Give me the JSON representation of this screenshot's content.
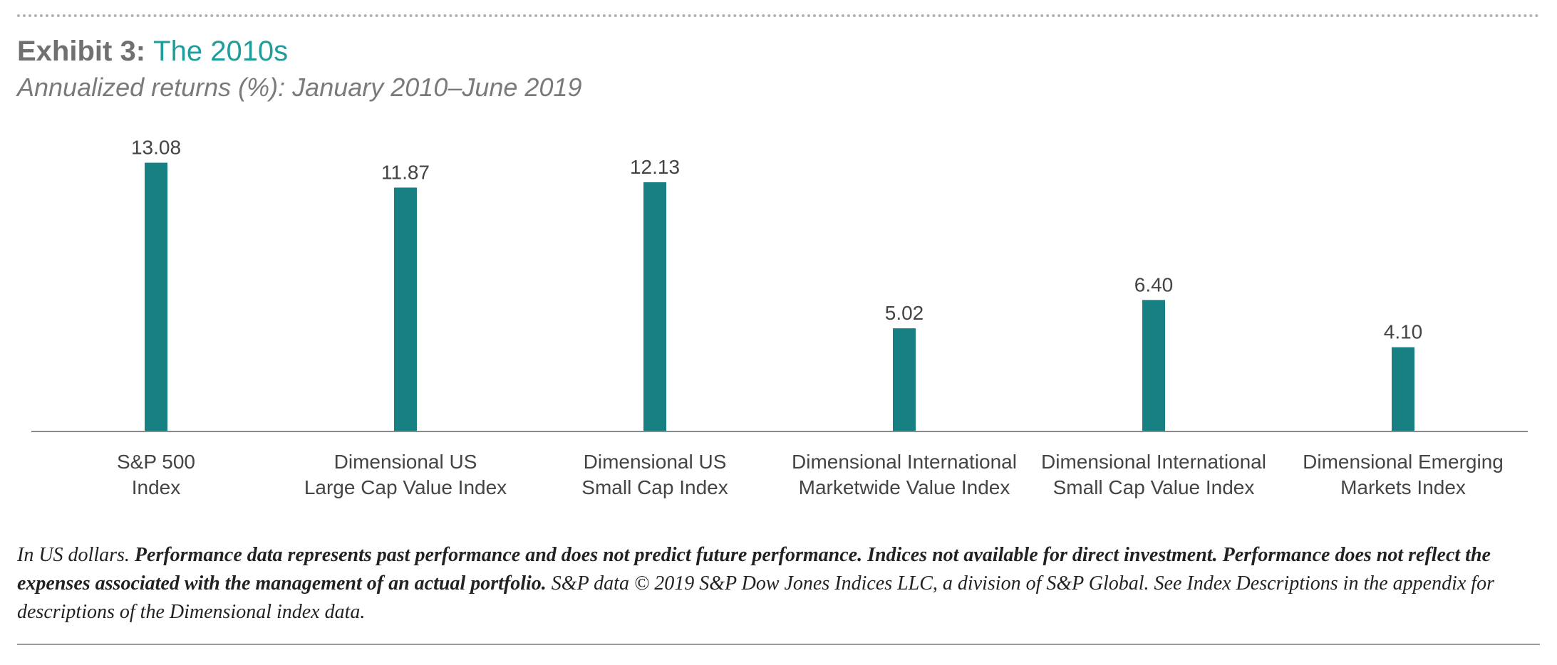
{
  "header": {
    "title_prefix": "Exhibit 3:",
    "title_main": "The 2010s",
    "subtitle": "Annualized returns (%): January 2010–June 2019"
  },
  "colors": {
    "bar": "#168083",
    "title_accent": "#1f9c9c"
  },
  "chart_data": {
    "type": "bar",
    "title": "The 2010s",
    "subtitle": "Annualized returns (%): January 2010–June 2019",
    "categories": [
      [
        "S&P 500",
        "Index"
      ],
      [
        "Dimensional US",
        "Large Cap Value Index"
      ],
      [
        "Dimensional US",
        "Small Cap Index"
      ],
      [
        "Dimensional International",
        "Marketwide Value Index"
      ],
      [
        "Dimensional International",
        "Small Cap Value Index"
      ],
      [
        "Dimensional Emerging",
        "Markets Index"
      ]
    ],
    "values": [
      13.08,
      11.87,
      12.13,
      5.02,
      6.4,
      4.1
    ],
    "value_labels": [
      "13.08",
      "11.87",
      "12.13",
      "5.02",
      "6.40",
      "4.10"
    ],
    "ylim": [
      0,
      14
    ],
    "grid": false,
    "legend": "none"
  },
  "footnote": {
    "part1": "In US dollars. ",
    "part2": "Performance data represents past performance and does not predict future performance. Indices not available for direct investment. Performance does not reflect the expenses associated with the management of an actual portfolio.",
    "part3": " S&P data © 2019 S&P Dow Jones Indices LLC, a division of S&P Global. See Index Descriptions in the appendix for descriptions of the Dimensional index data."
  }
}
